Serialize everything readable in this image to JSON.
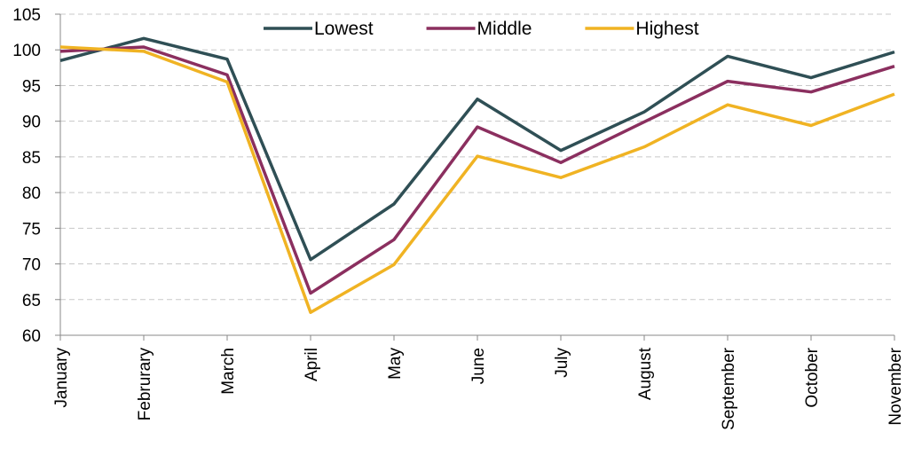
{
  "chart_data": {
    "type": "line",
    "categories": [
      "January",
      "Februrary",
      "March",
      "April",
      "May",
      "June",
      "July",
      "August",
      "September",
      "October",
      "November"
    ],
    "series": [
      {
        "name": "Lowest",
        "color": "#2f4f55",
        "values": [
          98.5,
          101.6,
          98.7,
          70.6,
          78.4,
          93.1,
          85.9,
          91.3,
          99.1,
          96.1,
          99.7
        ]
      },
      {
        "name": "Middle",
        "color": "#8b2f5f",
        "values": [
          99.8,
          100.4,
          96.5,
          65.9,
          73.4,
          89.2,
          84.2,
          89.9,
          95.6,
          94.1,
          97.7
        ]
      },
      {
        "name": "Highest",
        "color": "#f0b323",
        "values": [
          100.4,
          99.8,
          95.5,
          63.2,
          69.9,
          85.1,
          82.1,
          86.4,
          92.3,
          89.4,
          93.8
        ]
      }
    ],
    "ylim": [
      60,
      105
    ],
    "yticks": [
      60,
      65,
      70,
      75,
      80,
      85,
      90,
      95,
      100,
      105
    ],
    "grid": true,
    "legend": "top"
  }
}
